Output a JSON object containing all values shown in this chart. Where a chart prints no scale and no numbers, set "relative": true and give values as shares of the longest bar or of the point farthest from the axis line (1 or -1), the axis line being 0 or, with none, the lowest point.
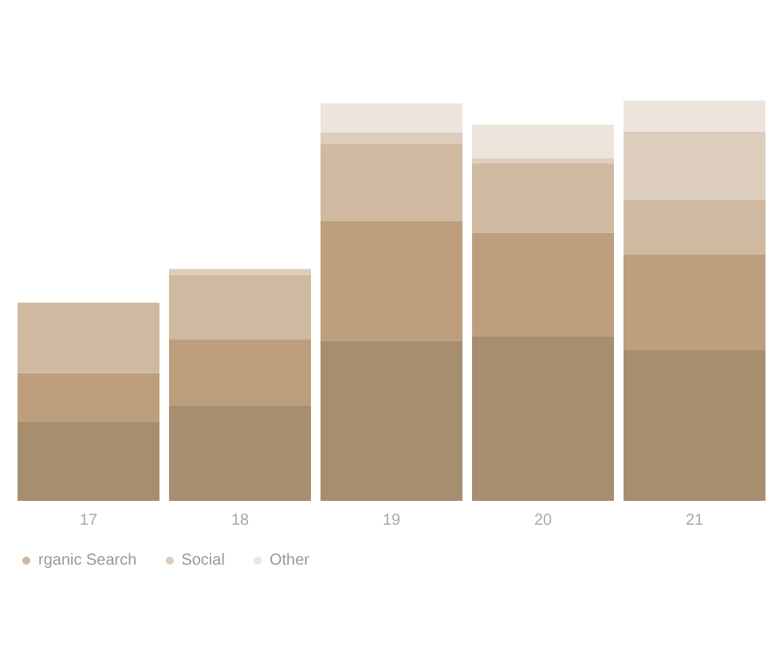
{
  "chart_data": {
    "type": "bar",
    "stacked": true,
    "relative": true,
    "categories": [
      "17",
      "18",
      "19",
      "20",
      "21"
    ],
    "series": [
      {
        "color": "#a68e6f",
        "values": [
          0.197,
          0.237,
          0.4,
          0.412,
          0.378
        ]
      },
      {
        "color": "#bd9f7e",
        "values": [
          0.122,
          0.167,
          0.3,
          0.258,
          0.238
        ]
      },
      {
        "name": "rganic Search",
        "color": "#cfb9a0",
        "values": [
          0.176,
          0.161,
          0.192,
          0.173,
          0.135
        ]
      },
      {
        "name": "Social",
        "color": "#dccdbd",
        "values": [
          null,
          0.014,
          0.029,
          0.013,
          0.172
        ]
      },
      {
        "name": "Other",
        "color": "#ede5dc",
        "values": [
          0,
          0,
          0.072,
          0.083,
          0.077
        ]
      }
    ],
    "legend": "bottom left"
  }
}
